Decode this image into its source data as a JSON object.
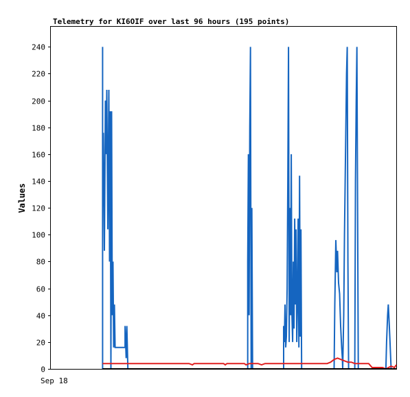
{
  "chart_data": {
    "type": "line",
    "title": "Telemetry for KI6OIF over last 96 hours (195 points)",
    "xlabel": "",
    "ylabel": "Values",
    "x_tick_labels": [
      "Sep 18"
    ],
    "xlim": [
      0,
      100
    ],
    "ylim": [
      0,
      255
    ],
    "yticks": [
      0,
      20,
      40,
      60,
      80,
      100,
      120,
      140,
      160,
      180,
      200,
      220,
      240
    ],
    "grid": false,
    "colors": {
      "blue": "#1565c0",
      "red": "#e02020",
      "black": "#000000"
    },
    "series": [
      {
        "color": "#1565c0",
        "points": [
          [
            15.0,
            0
          ],
          [
            15.0,
            240
          ],
          [
            15.0,
            120
          ],
          [
            15.2,
            176
          ],
          [
            15.5,
            88
          ],
          [
            15.8,
            200
          ],
          [
            16.0,
            160
          ],
          [
            16.2,
            208
          ],
          [
            16.5,
            104
          ],
          [
            16.8,
            208
          ],
          [
            17.0,
            80
          ],
          [
            17.2,
            192
          ],
          [
            17.4,
            0
          ],
          [
            17.6,
            192
          ],
          [
            17.8,
            40
          ],
          [
            18.0,
            80
          ],
          [
            18.2,
            16
          ],
          [
            18.4,
            48
          ],
          [
            18.6,
            16
          ],
          [
            21.5,
            16
          ],
          [
            21.5,
            32
          ],
          [
            21.8,
            8
          ],
          [
            22.0,
            32
          ],
          [
            22.3,
            0
          ],
          [
            57.0,
            0
          ],
          [
            57.0,
            80
          ],
          [
            57.2,
            160
          ],
          [
            57.4,
            40
          ],
          [
            57.6,
            180
          ],
          [
            57.8,
            240
          ],
          [
            58.0,
            0
          ],
          [
            58.2,
            120
          ],
          [
            58.4,
            0
          ],
          [
            67.4,
            0
          ],
          [
            67.4,
            32
          ],
          [
            67.6,
            20
          ],
          [
            67.8,
            48
          ],
          [
            68.0,
            16
          ],
          [
            68.2,
            24
          ],
          [
            68.4,
            60
          ],
          [
            68.6,
            140
          ],
          [
            68.8,
            240
          ],
          [
            69.0,
            20
          ],
          [
            69.2,
            120
          ],
          [
            69.4,
            40
          ],
          [
            69.6,
            160
          ],
          [
            69.8,
            40
          ],
          [
            70.0,
            20
          ],
          [
            70.2,
            80
          ],
          [
            70.4,
            30
          ],
          [
            70.6,
            112
          ],
          [
            70.8,
            48
          ],
          [
            71.0,
            104
          ],
          [
            71.2,
            20
          ],
          [
            71.4,
            48
          ],
          [
            71.6,
            112
          ],
          [
            71.8,
            16
          ],
          [
            72.0,
            144
          ],
          [
            72.2,
            24
          ],
          [
            72.4,
            104
          ],
          [
            72.6,
            0
          ],
          [
            82.0,
            0
          ],
          [
            82.2,
            48
          ],
          [
            82.5,
            96
          ],
          [
            82.8,
            72
          ],
          [
            83.0,
            88
          ],
          [
            83.3,
            64
          ],
          [
            83.6,
            56
          ],
          [
            83.9,
            32
          ],
          [
            84.2,
            16
          ],
          [
            84.4,
            8
          ],
          [
            84.5,
            0
          ],
          [
            84.8,
            40
          ],
          [
            85.0,
            100
          ],
          [
            85.2,
            140
          ],
          [
            85.4,
            180
          ],
          [
            85.6,
            220
          ],
          [
            85.8,
            240
          ],
          [
            86.0,
            80
          ],
          [
            86.2,
            0
          ],
          [
            88.0,
            0
          ],
          [
            88.2,
            140
          ],
          [
            88.4,
            200
          ],
          [
            88.6,
            240
          ],
          [
            88.8,
            120
          ],
          [
            89.0,
            0
          ],
          [
            97.0,
            0
          ],
          [
            97.2,
            20
          ],
          [
            97.5,
            40
          ],
          [
            97.7,
            48
          ],
          [
            98.0,
            32
          ],
          [
            98.2,
            20
          ],
          [
            98.5,
            0
          ]
        ]
      },
      {
        "color": "#e02020",
        "points": [
          [
            15.0,
            4
          ],
          [
            40.0,
            4
          ],
          [
            41.0,
            3
          ],
          [
            41.5,
            4
          ],
          [
            50.0,
            4
          ],
          [
            50.5,
            3
          ],
          [
            51.0,
            4
          ],
          [
            56.0,
            4
          ],
          [
            56.5,
            3
          ],
          [
            57.5,
            4
          ],
          [
            60.0,
            4
          ],
          [
            61.0,
            3
          ],
          [
            62.0,
            4
          ],
          [
            80.0,
            4
          ],
          [
            81.0,
            5
          ],
          [
            82.0,
            7
          ],
          [
            83.0,
            8
          ],
          [
            84.0,
            7
          ],
          [
            85.0,
            6
          ],
          [
            86.0,
            5
          ],
          [
            87.0,
            5
          ],
          [
            88.0,
            4
          ],
          [
            92.0,
            4
          ],
          [
            93.0,
            1
          ],
          [
            96.0,
            1
          ],
          [
            97.0,
            0
          ],
          [
            98.5,
            2
          ],
          [
            99.5,
            1
          ],
          [
            100.0,
            3
          ]
        ]
      },
      {
        "color": "#000000",
        "points": [
          [
            15.0,
            0
          ],
          [
            100.0,
            0
          ]
        ]
      }
    ]
  }
}
